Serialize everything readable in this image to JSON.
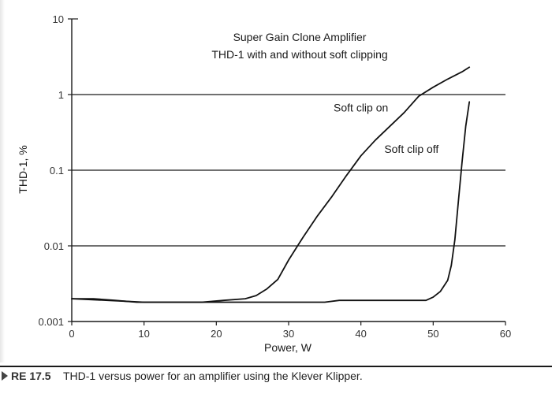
{
  "chart_data": {
    "type": "line",
    "title_lines": [
      "Super Gain Clone Amplifier",
      "THD-1 with and without soft clipping"
    ],
    "xlabel": "Power, W",
    "ylabel": "THD-1, %",
    "xlim": [
      0,
      60
    ],
    "ylim": [
      0.001,
      10
    ],
    "yscale": "log",
    "xticks": [
      0,
      10,
      20,
      30,
      40,
      50,
      60
    ],
    "yticks": [
      {
        "value": 0.001,
        "label": "0.001"
      },
      {
        "value": 0.01,
        "label": "0.01"
      },
      {
        "value": 0.1,
        "label": "0.1"
      },
      {
        "value": 1,
        "label": "1"
      },
      {
        "value": 10,
        "label": "10"
      }
    ],
    "grid": "horizontal",
    "series": [
      {
        "name": "Soft clip on",
        "x": [
          0,
          3,
          6,
          9,
          12,
          15,
          18,
          21,
          24,
          25.5,
          27,
          28.5,
          30,
          32,
          34,
          36,
          38,
          40,
          42,
          44,
          46,
          48,
          50,
          52,
          54,
          55
        ],
        "y": [
          0.002,
          0.002,
          0.0019,
          0.0018,
          0.0018,
          0.0018,
          0.0018,
          0.0019,
          0.002,
          0.0022,
          0.0027,
          0.0036,
          0.0065,
          0.013,
          0.025,
          0.045,
          0.085,
          0.155,
          0.25,
          0.38,
          0.58,
          0.95,
          1.25,
          1.6,
          2.0,
          2.3
        ]
      },
      {
        "name": "Soft clip off",
        "x": [
          0,
          5,
          10,
          15,
          20,
          25,
          30,
          35,
          37,
          40,
          45,
          48,
          49,
          50,
          51,
          52,
          52.5,
          53,
          53.5,
          54,
          54.5,
          55
        ],
        "y": [
          0.002,
          0.0019,
          0.0018,
          0.0018,
          0.0018,
          0.0018,
          0.0018,
          0.0018,
          0.0019,
          0.0019,
          0.0019,
          0.0019,
          0.0019,
          0.0021,
          0.0025,
          0.0035,
          0.0055,
          0.012,
          0.04,
          0.13,
          0.38,
          0.8
        ]
      }
    ]
  },
  "annotations": [
    {
      "text": "Soft clip on",
      "at": [
        40,
        0.6
      ]
    },
    {
      "text": "Soft clip off",
      "at": [
        47,
        0.17
      ]
    }
  ],
  "caption": {
    "label": "RE 17.5",
    "text": "THD-1 versus power for an amplifier using the Klever Klipper."
  }
}
